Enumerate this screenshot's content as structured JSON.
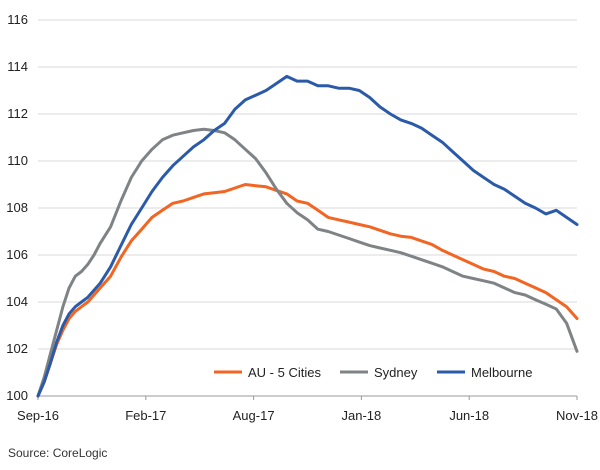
{
  "source_note": "Source: CoreLogic",
  "chart_data": {
    "type": "line",
    "x_tick_labels": [
      "Sep-16",
      "Feb-17",
      "Aug-17",
      "Jan-18",
      "Jun-18",
      "Nov-18"
    ],
    "y_ticks": [
      100,
      102,
      104,
      106,
      108,
      110,
      112,
      114,
      116
    ],
    "ylim": [
      100,
      116
    ],
    "grid": "horizontal",
    "legend_position": "bottom-right",
    "series": [
      {
        "name": "AU - 5 Cities",
        "color": "#f26522",
        "x": [
          0.0,
          0.3,
          0.6,
          0.9,
          1.2,
          1.5,
          1.8,
          2.1,
          2.4,
          2.7,
          3.0,
          3.5,
          4.0,
          4.5,
          5.0,
          5.5,
          6.0,
          6.5,
          7.0,
          7.5,
          8.0,
          8.5,
          9.0,
          9.5,
          10.0,
          10.5,
          11.0,
          11.5,
          12.0,
          12.5,
          13.0,
          13.5,
          14.0,
          14.5,
          15.0,
          15.5,
          16.0,
          16.5,
          17.0,
          17.5,
          18.0,
          18.5,
          19.0,
          19.5,
          20.0,
          20.5,
          21.0,
          21.5,
          22.0,
          22.5,
          23.0,
          23.5,
          24.0,
          24.5,
          25.0,
          25.5,
          26.0
        ],
        "y": [
          100.0,
          100.6,
          101.4,
          102.2,
          102.8,
          103.3,
          103.6,
          103.8,
          104.0,
          104.3,
          104.6,
          105.1,
          105.9,
          106.6,
          107.1,
          107.6,
          107.9,
          108.2,
          108.3,
          108.45,
          108.6,
          108.65,
          108.7,
          108.85,
          109.0,
          108.95,
          108.9,
          108.75,
          108.6,
          108.3,
          108.2,
          107.9,
          107.6,
          107.5,
          107.4,
          107.3,
          107.2,
          107.05,
          106.9,
          106.8,
          106.75,
          106.6,
          106.45,
          106.2,
          106.0,
          105.8,
          105.6,
          105.4,
          105.3,
          105.1,
          105.0,
          104.8,
          104.6,
          104.4,
          104.1,
          103.8,
          103.3
        ]
      },
      {
        "name": "Sydney",
        "color": "#7f8385",
        "x": [
          0.0,
          0.3,
          0.6,
          0.9,
          1.2,
          1.5,
          1.8,
          2.1,
          2.4,
          2.7,
          3.0,
          3.5,
          4.0,
          4.5,
          5.0,
          5.5,
          6.0,
          6.5,
          7.0,
          7.5,
          8.0,
          8.5,
          9.0,
          9.5,
          10.0,
          10.5,
          11.0,
          11.5,
          12.0,
          12.5,
          13.0,
          13.5,
          14.0,
          14.5,
          15.0,
          15.5,
          16.0,
          16.5,
          17.0,
          17.5,
          18.0,
          18.5,
          19.0,
          19.5,
          20.0,
          20.5,
          21.0,
          21.5,
          22.0,
          22.5,
          23.0,
          23.5,
          24.0,
          24.5,
          25.0,
          25.5,
          26.0
        ],
        "y": [
          100.0,
          100.8,
          101.8,
          102.8,
          103.8,
          104.6,
          105.1,
          105.3,
          105.6,
          106.0,
          106.5,
          107.2,
          108.3,
          109.3,
          110.0,
          110.5,
          110.9,
          111.1,
          111.2,
          111.3,
          111.35,
          111.3,
          111.2,
          110.9,
          110.5,
          110.1,
          109.5,
          108.8,
          108.2,
          107.8,
          107.5,
          107.1,
          107.0,
          106.85,
          106.7,
          106.55,
          106.4,
          106.3,
          106.2,
          106.1,
          105.95,
          105.8,
          105.65,
          105.5,
          105.3,
          105.1,
          105.0,
          104.9,
          104.8,
          104.6,
          104.4,
          104.3,
          104.1,
          103.9,
          103.7,
          103.1,
          101.9
        ]
      },
      {
        "name": "Melbourne",
        "color": "#2b5ba8",
        "x": [
          0.0,
          0.3,
          0.6,
          0.9,
          1.2,
          1.5,
          1.8,
          2.1,
          2.4,
          2.7,
          3.0,
          3.5,
          4.0,
          4.5,
          5.0,
          5.5,
          6.0,
          6.5,
          7.0,
          7.5,
          8.0,
          8.5,
          9.0,
          9.5,
          10.0,
          10.5,
          11.0,
          11.5,
          12.0,
          12.5,
          13.0,
          13.5,
          14.0,
          14.5,
          15.0,
          15.5,
          16.0,
          16.5,
          17.0,
          17.5,
          18.0,
          18.5,
          19.0,
          19.5,
          20.0,
          20.5,
          21.0,
          21.5,
          22.0,
          22.5,
          23.0,
          23.5,
          24.0,
          24.5,
          25.0,
          25.5,
          26.0
        ],
        "y": [
          100.0,
          100.6,
          101.4,
          102.3,
          103.0,
          103.5,
          103.8,
          104.0,
          104.2,
          104.5,
          104.8,
          105.5,
          106.4,
          107.3,
          108.0,
          108.7,
          109.3,
          109.8,
          110.2,
          110.6,
          110.9,
          111.3,
          111.6,
          112.2,
          112.6,
          112.8,
          113.0,
          113.3,
          113.6,
          113.4,
          113.4,
          113.2,
          113.2,
          113.1,
          113.1,
          113.0,
          112.7,
          112.3,
          112.0,
          111.75,
          111.6,
          111.4,
          111.1,
          110.8,
          110.4,
          110.0,
          109.6,
          109.3,
          109.0,
          108.8,
          108.5,
          108.2,
          108.0,
          107.75,
          107.9,
          107.6,
          107.3
        ]
      }
    ]
  }
}
